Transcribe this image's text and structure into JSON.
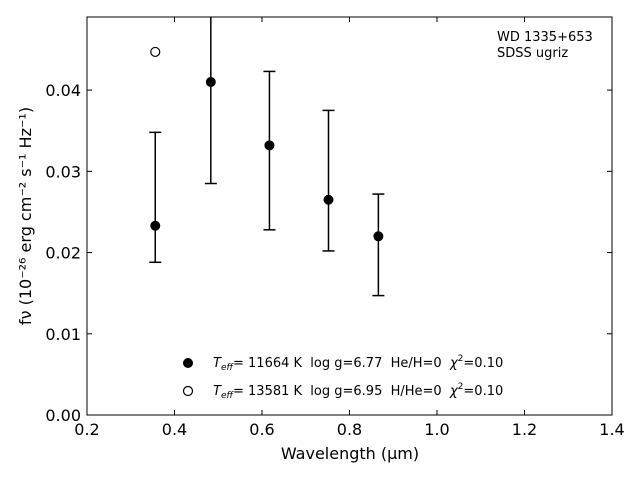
{
  "chart_data": {
    "type": "scatter",
    "annotation": [
      "WD 1335+653",
      "SDSS ugriz"
    ],
    "xlabel": "Wavelength (μm)",
    "ylabel": "fν (10⁻²⁶ erg cm⁻² s⁻¹ Hz⁻¹)",
    "xlim": [
      0.2,
      1.4
    ],
    "ylim": [
      0.0,
      0.049
    ],
    "xticks": [
      0.2,
      0.4,
      0.6,
      0.8,
      1.0,
      1.2,
      1.4
    ],
    "xtick_labels": [
      "0.2",
      "0.4",
      "0.6",
      "0.8",
      "1.0",
      "1.2",
      "1.4"
    ],
    "yticks": [
      0.0,
      0.01,
      0.02,
      0.03,
      0.04
    ],
    "ytick_labels": [
      "0.00",
      "0.01",
      "0.02",
      "0.03",
      "0.04"
    ],
    "grid": false,
    "legend_position": "bottom-center",
    "series": [
      {
        "marker": "filled-circle",
        "label": "T_eff= 11664 K  log g=6.77  He/H=0  χ²=0.10",
        "label_sub": "eff",
        "label_text": "= 11664 K  log g=6.77  He/H=0  ",
        "label_chi": "=0.10",
        "points": [
          {
            "x": 0.356,
            "y": 0.0233,
            "yerr_low": 0.0188,
            "yerr_high": 0.0348
          },
          {
            "x": 0.483,
            "y": 0.041,
            "yerr_low": 0.0285,
            "yerr_high": 0.0535
          },
          {
            "x": 0.617,
            "y": 0.0332,
            "yerr_low": 0.0228,
            "yerr_high": 0.0423
          },
          {
            "x": 0.752,
            "y": 0.0265,
            "yerr_low": 0.0202,
            "yerr_high": 0.0375
          },
          {
            "x": 0.866,
            "y": 0.022,
            "yerr_low": 0.0147,
            "yerr_high": 0.0272
          }
        ]
      },
      {
        "marker": "open-circle",
        "label": "T_eff= 13581 K  log g=6.95  H/He=0  χ²=0.10",
        "label_sub": "eff",
        "label_text": "= 13581 K  log g=6.95  H/He=0  ",
        "label_chi": "=0.10",
        "points": [
          {
            "x": 0.356,
            "y": 0.0447
          }
        ]
      }
    ]
  }
}
